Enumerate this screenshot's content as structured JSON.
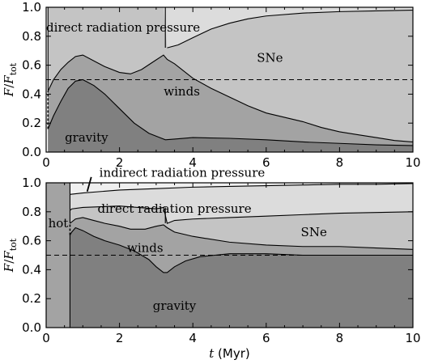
{
  "chart_data": [
    {
      "type": "area",
      "panel": "top",
      "xlabel_var": "t",
      "xlabel_unit": "(Myr)",
      "ylabel_num": "F",
      "ylabel_den": "F",
      "ylabel_sub": "tot",
      "xlim": [
        0,
        10
      ],
      "ylim": [
        0,
        1.0
      ],
      "xticks": [
        "0",
        "2",
        "4",
        "6",
        "8",
        "10"
      ],
      "yticks": [
        "0.0",
        "0.2",
        "0.4",
        "0.6",
        "0.8",
        "1.0"
      ],
      "reference_line": 0.5,
      "region_labels": [
        {
          "text": "direct radiation pressure",
          "x": 2.1,
          "y": 0.86
        },
        {
          "text": "SNe",
          "x": 6.1,
          "y": 0.65
        },
        {
          "text": "winds",
          "x": 3.7,
          "y": 0.42
        },
        {
          "text": "gravity",
          "x": 1.1,
          "y": 0.1
        }
      ],
      "colors": {
        "gravity": "#808080",
        "winds": "#a3a3a3",
        "SNe": "#c4c4c4",
        "direct_radiation_pressure": "#dcdcdc"
      },
      "series": [
        {
          "name": "gravity",
          "x": [
            0.05,
            0.2,
            0.4,
            0.6,
            0.8,
            1.0,
            1.3,
            1.6,
            2.0,
            2.4,
            2.8,
            3.1,
            3.25,
            3.5,
            4.0,
            5.0,
            6.0,
            7.0,
            8.0,
            9.0,
            10.0
          ],
          "y": [
            0.16,
            0.25,
            0.35,
            0.44,
            0.49,
            0.5,
            0.46,
            0.4,
            0.3,
            0.2,
            0.13,
            0.1,
            0.085,
            0.09,
            0.1,
            0.095,
            0.085,
            0.07,
            0.06,
            0.05,
            0.045
          ]
        },
        {
          "name": "winds",
          "x": [
            0.05,
            0.2,
            0.4,
            0.6,
            0.8,
            1.0,
            1.3,
            1.6,
            2.0,
            2.3,
            2.6,
            2.9,
            3.2,
            3.3,
            3.5,
            4.0,
            4.5,
            5.0,
            5.5,
            6.0,
            6.5,
            7.0,
            7.5,
            8.0,
            8.5,
            9.0,
            9.5,
            10.0
          ],
          "y": [
            0.42,
            0.5,
            0.57,
            0.62,
            0.66,
            0.67,
            0.63,
            0.59,
            0.55,
            0.54,
            0.57,
            0.62,
            0.67,
            0.64,
            0.61,
            0.51,
            0.44,
            0.38,
            0.32,
            0.27,
            0.24,
            0.21,
            0.17,
            0.14,
            0.12,
            0.1,
            0.08,
            0.07
          ]
        },
        {
          "name": "SNe",
          "x": [
            0.05,
            0.3,
            1.0,
            2.0,
            3.0,
            3.2,
            3.3,
            3.6,
            4.0,
            4.5,
            5.0,
            5.5,
            6.0,
            7.0,
            8.0,
            9.0,
            10.0
          ],
          "y": [
            1.0,
            1.0,
            1.0,
            1.0,
            1.0,
            1.0,
            0.72,
            0.74,
            0.79,
            0.85,
            0.89,
            0.92,
            0.94,
            0.96,
            0.97,
            0.975,
            0.98
          ]
        }
      ]
    },
    {
      "type": "area",
      "panel": "bottom",
      "xlabel_var": "t",
      "xlabel_unit": "(Myr)",
      "ylabel_num": "F",
      "ylabel_den": "F",
      "ylabel_sub": "tot",
      "xlim": [
        0,
        10
      ],
      "ylim": [
        0,
        1.0
      ],
      "xticks": [
        "0",
        "2",
        "4",
        "6",
        "8",
        "10"
      ],
      "yticks": [
        "0.0",
        "0.2",
        "0.4",
        "0.6",
        "0.8",
        "1.0"
      ],
      "reference_line": 0.5,
      "region_labels": [
        {
          "text": "direct radiation pressure",
          "x": 3.5,
          "y": 0.82
        },
        {
          "text": "SNe",
          "x": 7.3,
          "y": 0.66
        },
        {
          "text": "winds",
          "x": 2.7,
          "y": 0.55
        },
        {
          "text": "gravity",
          "x": 3.5,
          "y": 0.15
        },
        {
          "text": "hot",
          "x": 0.33,
          "y": 0.72
        }
      ],
      "callout": {
        "text": "indirect radiation pressure",
        "text_x": 1.45,
        "text_y": 1.07,
        "pointer_from": [
          1.23,
          1.04
        ],
        "pointer_to": [
          1.12,
          0.94
        ]
      },
      "colors": {
        "hot": "#a3a3a3",
        "gravity": "#808080",
        "winds": "#a3a3a3",
        "SNe": "#c4c4c4",
        "direct_radiation_pressure": "#dcdcdc",
        "indirect_radiation_pressure": "#efefef"
      },
      "series": [
        {
          "name": "gravity",
          "x": [
            0.65,
            0.7,
            0.8,
            1.0,
            1.3,
            1.6,
            2.0,
            2.4,
            2.8,
            3.0,
            3.2,
            3.3,
            3.5,
            3.8,
            4.2,
            4.6,
            5.0,
            5.5,
            6.0,
            7.0,
            8.0,
            9.0,
            10.0
          ],
          "y": [
            0.64,
            0.66,
            0.69,
            0.67,
            0.63,
            0.6,
            0.57,
            0.53,
            0.47,
            0.42,
            0.38,
            0.38,
            0.42,
            0.46,
            0.49,
            0.5,
            0.51,
            0.51,
            0.51,
            0.5,
            0.5,
            0.5,
            0.5
          ]
        },
        {
          "name": "winds",
          "x": [
            0.65,
            0.7,
            0.8,
            1.0,
            1.3,
            1.6,
            2.0,
            2.3,
            2.7,
            3.0,
            3.2,
            3.3,
            3.5,
            4.0,
            5.0,
            6.0,
            7.0,
            8.0,
            9.0,
            10.0
          ],
          "y": [
            0.72,
            0.73,
            0.75,
            0.76,
            0.74,
            0.72,
            0.7,
            0.68,
            0.68,
            0.7,
            0.71,
            0.69,
            0.66,
            0.63,
            0.59,
            0.57,
            0.56,
            0.56,
            0.55,
            0.54
          ]
        },
        {
          "name": "SNe",
          "x": [
            0.65,
            0.7,
            1.0,
            2.0,
            3.0,
            3.2,
            3.3,
            3.5,
            4.0,
            5.0,
            6.0,
            7.0,
            8.0,
            9.0,
            10.0
          ],
          "y": [
            0.81,
            0.82,
            0.83,
            0.84,
            0.82,
            0.83,
            0.72,
            0.74,
            0.75,
            0.76,
            0.77,
            0.78,
            0.79,
            0.795,
            0.8
          ]
        },
        {
          "name": "direct radiation pressure",
          "x": [
            0.65,
            1.0,
            2.0,
            3.0,
            4.0,
            5.0,
            6.0,
            7.0,
            8.0,
            9.0,
            10.0
          ],
          "y": [
            0.92,
            0.93,
            0.95,
            0.96,
            0.97,
            0.975,
            0.98,
            0.985,
            0.99,
            0.99,
            0.995
          ]
        }
      ]
    }
  ]
}
